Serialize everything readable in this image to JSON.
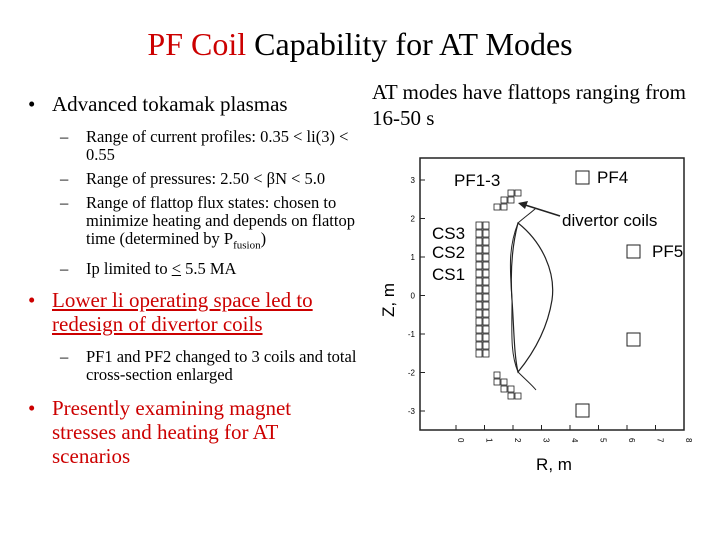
{
  "slide": {
    "title_accent": "PF Coil",
    "title_rest": " Capability for AT Modes"
  },
  "left_bullets": {
    "bullet1": "Advanced tokamak plasmas",
    "sub1": "Range of current profiles: 0.35 < li(3) < 0.55",
    "sub2": "Range of pressures: 2.50 < βN < 5.0",
    "sub3_a": "Range of flattop flux states: chosen to minimize heating and depends on flattop time (determined by P",
    "sub3_sub": "fusion",
    "sub3_b": ")",
    "sub4_a": "Ip limited to ",
    "sub4_u": "<",
    "sub4_b": " 5.5 MA",
    "bullet2": "Lower li operating space led to redesign of divertor coils",
    "sub5": "PF1 and PF2 changed to 3 coils and total cross-section enlarged",
    "bullet3": "Presently examining magnet stresses and heating for AT scenarios",
    "dot": "•",
    "dash": "–"
  },
  "note": "AT modes have flattops ranging from 16-50 s",
  "figure": {
    "xlabel": "R, m",
    "ylabel": "Z, m",
    "yticks": [
      "3",
      "2",
      "1",
      "0",
      "-1",
      "-2",
      "-3"
    ],
    "xticks": [
      "0",
      "1",
      "2",
      "3",
      "4",
      "5",
      "6",
      "7",
      "8"
    ],
    "labels": {
      "pf13": "PF1-3",
      "pf4": "PF4",
      "divertor": "divertor coils",
      "cs3": "CS3",
      "cs2": "CS2",
      "cs1": "CS1",
      "pf5": "PF5"
    }
  }
}
